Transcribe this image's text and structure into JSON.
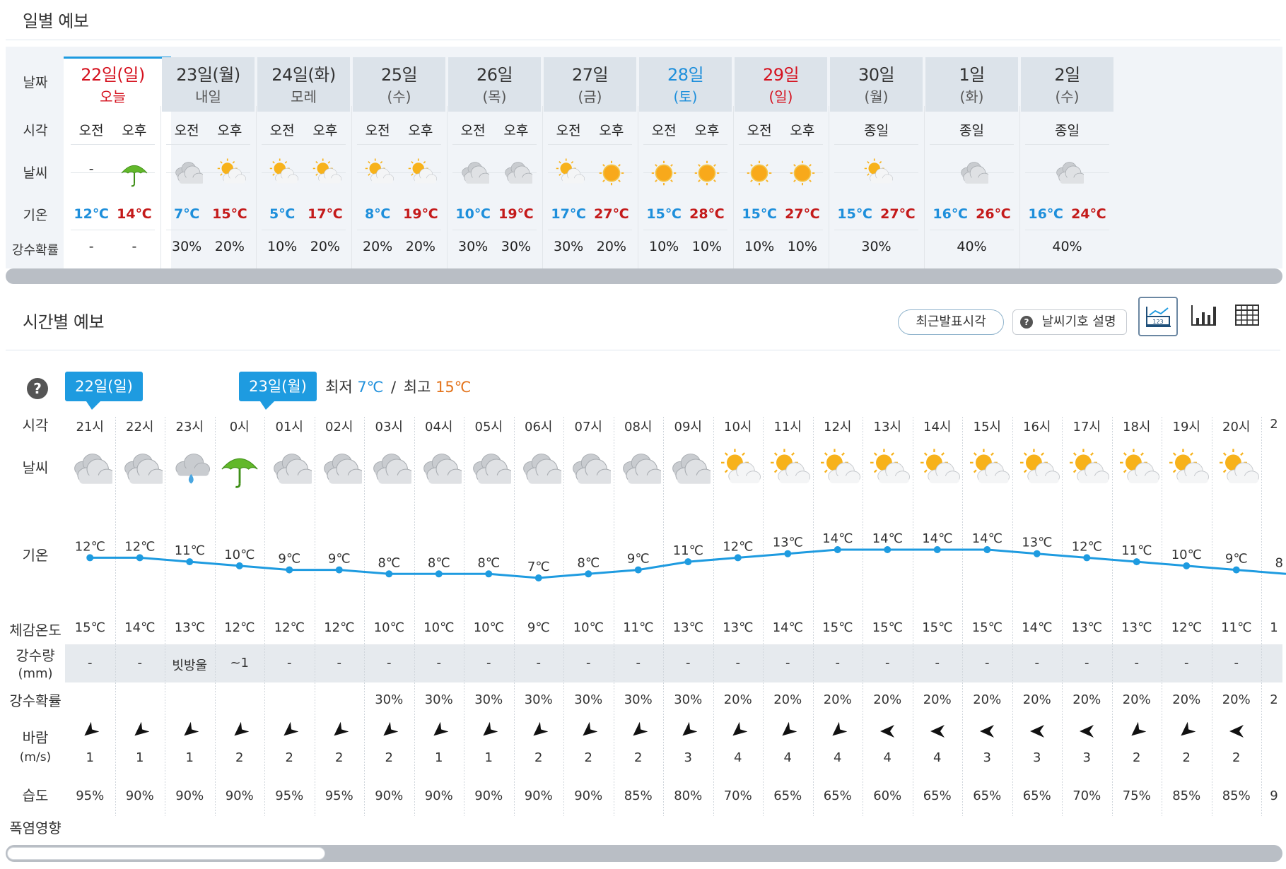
{
  "daily": {
    "title": "일별 예보",
    "row_labels": {
      "date": "날짜",
      "time": "시각",
      "weather": "날씨",
      "temp": "기온",
      "precip_prob": "강수확률"
    },
    "days": [
      {
        "date": "22일(일)",
        "sub": "오늘",
        "style": "red",
        "split": true,
        "ampm": [
          "오전",
          "오후"
        ],
        "icons": [
          "none",
          "umbrella"
        ],
        "icon_text_am": "-",
        "min": "12℃",
        "max": "14℃",
        "prob": [
          "-",
          "-"
        ]
      },
      {
        "date": "23일(월)",
        "sub": "내일",
        "style": "",
        "split": true,
        "ampm": [
          "오전",
          "오후"
        ],
        "icons": [
          "cloudy",
          "partly"
        ],
        "min": "7℃",
        "max": "15℃",
        "prob": [
          "30%",
          "20%"
        ]
      },
      {
        "date": "24일(화)",
        "sub": "모레",
        "style": "",
        "split": true,
        "ampm": [
          "오전",
          "오후"
        ],
        "icons": [
          "partly",
          "partly"
        ],
        "min": "5℃",
        "max": "17℃",
        "prob": [
          "10%",
          "20%"
        ]
      },
      {
        "date": "25일",
        "sub": "(수)",
        "style": "",
        "split": true,
        "ampm": [
          "오전",
          "오후"
        ],
        "icons": [
          "partly",
          "partly"
        ],
        "min": "8℃",
        "max": "19℃",
        "prob": [
          "20%",
          "20%"
        ]
      },
      {
        "date": "26일",
        "sub": "(목)",
        "style": "",
        "split": true,
        "ampm": [
          "오전",
          "오후"
        ],
        "icons": [
          "cloudy",
          "cloudy"
        ],
        "min": "10℃",
        "max": "19℃",
        "prob": [
          "30%",
          "30%"
        ]
      },
      {
        "date": "27일",
        "sub": "(금)",
        "style": "",
        "split": true,
        "ampm": [
          "오전",
          "오후"
        ],
        "icons": [
          "partly",
          "sunny"
        ],
        "min": "17℃",
        "max": "27℃",
        "prob": [
          "30%",
          "20%"
        ]
      },
      {
        "date": "28일",
        "sub": "(토)",
        "style": "blue",
        "split": true,
        "ampm": [
          "오전",
          "오후"
        ],
        "icons": [
          "sunny",
          "sunny"
        ],
        "min": "15℃",
        "max": "28℃",
        "prob": [
          "10%",
          "10%"
        ]
      },
      {
        "date": "29일",
        "sub": "(일)",
        "style": "red",
        "split": true,
        "ampm": [
          "오전",
          "오후"
        ],
        "icons": [
          "sunny",
          "sunny"
        ],
        "min": "15℃",
        "max": "27℃",
        "prob": [
          "10%",
          "10%"
        ]
      },
      {
        "date": "30일",
        "sub": "(월)",
        "style": "",
        "split": false,
        "allday": "종일",
        "icons": [
          "partly"
        ],
        "min": "15℃",
        "max": "27℃",
        "prob": [
          "30%"
        ]
      },
      {
        "date": "1일",
        "sub": "(화)",
        "style": "",
        "split": false,
        "allday": "종일",
        "icons": [
          "cloudy"
        ],
        "min": "16℃",
        "max": "26℃",
        "prob": [
          "40%"
        ]
      },
      {
        "date": "2일",
        "sub": "(수)",
        "style": "",
        "split": false,
        "allday": "종일",
        "icons": [
          "cloudy"
        ],
        "min": "16℃",
        "max": "24℃",
        "prob": [
          "40%"
        ]
      }
    ]
  },
  "hourly": {
    "title": "시간별 예보",
    "buttons": {
      "latest": "최근발표시각",
      "legend": "날씨기호 설명"
    },
    "view_icons": [
      "graph-view-icon",
      "bar-chart-icon",
      "table-view-icon"
    ],
    "help_glyph": "?",
    "date_badges": [
      "22일(일)",
      "23일(월)"
    ],
    "minmax": {
      "min_label": "최저",
      "min_value": "7℃",
      "sep": "/",
      "max_label": "최고",
      "max_value": "15℃"
    },
    "row_labels": {
      "time": "시각",
      "weather": "날씨",
      "temp": "기온",
      "feels": "체감온도",
      "rain_amount": "강수량",
      "rain_unit": "(mm)",
      "precip_prob": "강수확률",
      "wind": "바람",
      "wind_unit": "(m/s)",
      "humidity": "습도",
      "heat": "폭염영향"
    },
    "hours": [
      {
        "time": "21시",
        "icon": "cloudy",
        "temp": 12,
        "temp_label": "12℃",
        "feels": "15℃",
        "rain": "-",
        "prob": "",
        "wind_dir": "sw",
        "wind": "1",
        "hum": "95%"
      },
      {
        "time": "22시",
        "icon": "cloudy",
        "temp": 12,
        "temp_label": "12℃",
        "feels": "14℃",
        "rain": "-",
        "prob": "",
        "wind_dir": "sw",
        "wind": "1",
        "hum": "90%"
      },
      {
        "time": "23시",
        "icon": "rain-cloud",
        "temp": 11,
        "temp_label": "11℃",
        "feels": "13℃",
        "rain": "빗방울",
        "prob": "",
        "wind_dir": "sw",
        "wind": "1",
        "hum": "90%"
      },
      {
        "time": "0시",
        "icon": "umbrella",
        "temp": 10,
        "temp_label": "10℃",
        "feels": "12℃",
        "rain": "~1",
        "prob": "",
        "wind_dir": "sw",
        "wind": "2",
        "hum": "90%"
      },
      {
        "time": "01시",
        "icon": "cloudy",
        "temp": 9,
        "temp_label": "9℃",
        "feels": "12℃",
        "rain": "-",
        "prob": "",
        "wind_dir": "sw",
        "wind": "2",
        "hum": "95%"
      },
      {
        "time": "02시",
        "icon": "cloudy",
        "temp": 9,
        "temp_label": "9℃",
        "feels": "12℃",
        "rain": "-",
        "prob": "",
        "wind_dir": "sw",
        "wind": "2",
        "hum": "95%"
      },
      {
        "time": "03시",
        "icon": "cloudy",
        "temp": 8,
        "temp_label": "8℃",
        "feels": "10℃",
        "rain": "-",
        "prob": "30%",
        "wind_dir": "sw",
        "wind": "2",
        "hum": "90%"
      },
      {
        "time": "04시",
        "icon": "cloudy",
        "temp": 8,
        "temp_label": "8℃",
        "feels": "10℃",
        "rain": "-",
        "prob": "30%",
        "wind_dir": "sw",
        "wind": "1",
        "hum": "90%"
      },
      {
        "time": "05시",
        "icon": "cloudy",
        "temp": 8,
        "temp_label": "8℃",
        "feels": "10℃",
        "rain": "-",
        "prob": "30%",
        "wind_dir": "sw",
        "wind": "1",
        "hum": "90%"
      },
      {
        "time": "06시",
        "icon": "cloudy",
        "temp": 7,
        "temp_label": "7℃",
        "feels": "9℃",
        "rain": "-",
        "prob": "30%",
        "wind_dir": "sw",
        "wind": "2",
        "hum": "90%"
      },
      {
        "time": "07시",
        "icon": "cloudy",
        "temp": 8,
        "temp_label": "8℃",
        "feels": "10℃",
        "rain": "-",
        "prob": "30%",
        "wind_dir": "sw",
        "wind": "2",
        "hum": "90%"
      },
      {
        "time": "08시",
        "icon": "cloudy",
        "temp": 9,
        "temp_label": "9℃",
        "feels": "11℃",
        "rain": "-",
        "prob": "30%",
        "wind_dir": "sw",
        "wind": "2",
        "hum": "85%"
      },
      {
        "time": "09시",
        "icon": "cloudy",
        "temp": 11,
        "temp_label": "11℃",
        "feels": "13℃",
        "rain": "-",
        "prob": "30%",
        "wind_dir": "sw",
        "wind": "3",
        "hum": "80%"
      },
      {
        "time": "10시",
        "icon": "partly",
        "temp": 12,
        "temp_label": "12℃",
        "feels": "13℃",
        "rain": "-",
        "prob": "20%",
        "wind_dir": "sw",
        "wind": "4",
        "hum": "70%"
      },
      {
        "time": "11시",
        "icon": "partly",
        "temp": 13,
        "temp_label": "13℃",
        "feels": "14℃",
        "rain": "-",
        "prob": "20%",
        "wind_dir": "sw",
        "wind": "4",
        "hum": "65%"
      },
      {
        "time": "12시",
        "icon": "partly",
        "temp": 14,
        "temp_label": "14℃",
        "feels": "15℃",
        "rain": "-",
        "prob": "20%",
        "wind_dir": "sw",
        "wind": "4",
        "hum": "65%"
      },
      {
        "time": "13시",
        "icon": "partly",
        "temp": 14,
        "temp_label": "14℃",
        "feels": "15℃",
        "rain": "-",
        "prob": "20%",
        "wind_dir": "w",
        "wind": "4",
        "hum": "60%"
      },
      {
        "time": "14시",
        "icon": "partly",
        "temp": 14,
        "temp_label": "14℃",
        "feels": "15℃",
        "rain": "-",
        "prob": "20%",
        "wind_dir": "w",
        "wind": "4",
        "hum": "65%"
      },
      {
        "time": "15시",
        "icon": "partly",
        "temp": 14,
        "temp_label": "14℃",
        "feels": "15℃",
        "rain": "-",
        "prob": "20%",
        "wind_dir": "w",
        "wind": "3",
        "hum": "65%"
      },
      {
        "time": "16시",
        "icon": "partly",
        "temp": 13,
        "temp_label": "13℃",
        "feels": "14℃",
        "rain": "-",
        "prob": "20%",
        "wind_dir": "w",
        "wind": "3",
        "hum": "65%"
      },
      {
        "time": "17시",
        "icon": "partly",
        "temp": 12,
        "temp_label": "12℃",
        "feels": "13℃",
        "rain": "-",
        "prob": "20%",
        "wind_dir": "w",
        "wind": "3",
        "hum": "70%"
      },
      {
        "time": "18시",
        "icon": "partly",
        "temp": 11,
        "temp_label": "11℃",
        "feels": "13℃",
        "rain": "-",
        "prob": "20%",
        "wind_dir": "sw",
        "wind": "2",
        "hum": "75%"
      },
      {
        "time": "19시",
        "icon": "partly",
        "temp": 10,
        "temp_label": "10℃",
        "feels": "12℃",
        "rain": "-",
        "prob": "20%",
        "wind_dir": "sw",
        "wind": "2",
        "hum": "85%"
      },
      {
        "time": "20시",
        "icon": "partly",
        "temp": 9,
        "temp_label": "9℃",
        "feels": "11℃",
        "rain": "-",
        "prob": "20%",
        "wind_dir": "w",
        "wind": "2",
        "hum": "85%"
      }
    ],
    "clipped_next": {
      "time": "2",
      "temp": 8,
      "temp_label": "8",
      "feels": "1",
      "prob": "2",
      "hum": "9"
    }
  },
  "colors": {
    "accent": "#1e9be0",
    "temp_line": "#1e9be0",
    "min_temp": "#1e8fdb",
    "max_temp": "#c41a1a",
    "max_temp_orange": "#e3731b",
    "sunday": "#d5121f",
    "saturday": "#1e8fdb"
  }
}
